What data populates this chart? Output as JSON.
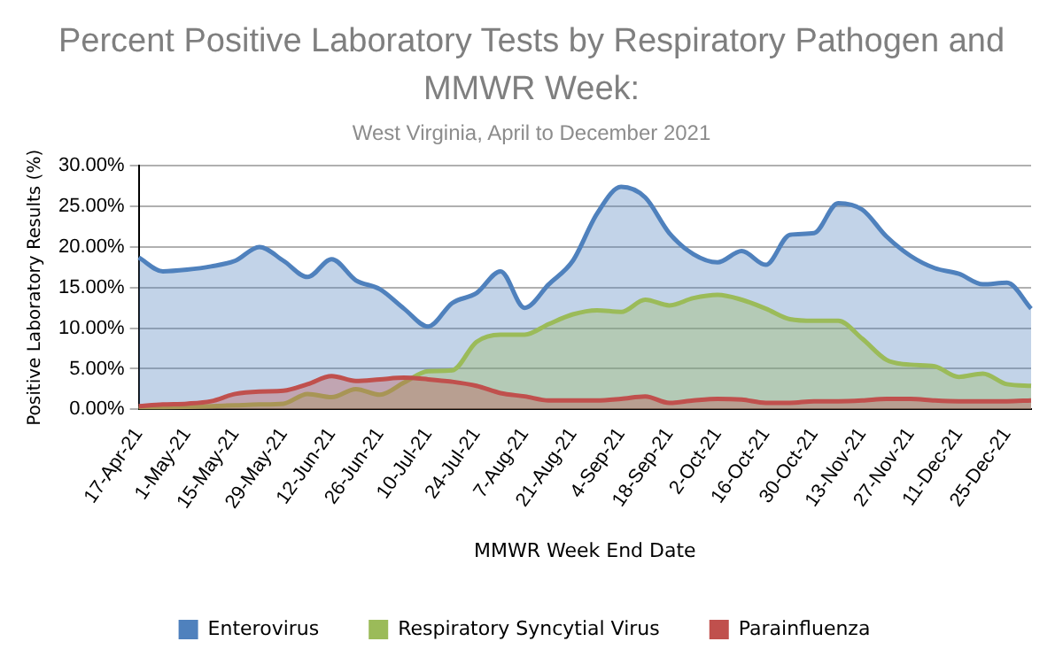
{
  "chart_data": {
    "type": "area",
    "title": "Percent Positive Laboratory Tests by Respiratory Pathogen and MMWR Week:",
    "subtitle": "West Virginia, April to December 2021",
    "xlabel": "MMWR Week End Date",
    "ylabel": "Positive Laboratory Results (%)",
    "categories": [
      "17-Apr-21",
      null,
      "1-May-21",
      null,
      "15-May-21",
      null,
      "29-May-21",
      null,
      "12-Jun-21",
      null,
      "26-Jun-21",
      null,
      "10-Jul-21",
      null,
      "24-Jul-21",
      null,
      "7-Aug-21",
      null,
      "21-Aug-21",
      null,
      "4-Sep-21",
      null,
      "18-Sep-21",
      null,
      "2-Oct-21",
      null,
      "16-Oct-21",
      null,
      "30-Oct-21",
      null,
      "13-Nov-21",
      null,
      "27-Nov-21",
      null,
      "11-Dec-21",
      null,
      "25-Dec-21",
      null
    ],
    "series": [
      {
        "name": "Enterovirus",
        "color": "#4f81bd",
        "values": [
          18.7,
          17.0,
          17.2,
          17.6,
          18.3,
          20.0,
          18.3,
          16.3,
          18.5,
          15.9,
          14.8,
          12.4,
          10.2,
          13.1,
          14.3,
          17.0,
          12.5,
          15.4,
          18.3,
          24.1,
          27.4,
          26.1,
          21.7,
          19.1,
          18.1,
          19.5,
          17.8,
          21.5,
          21.7,
          25.4,
          24.6,
          21.3,
          18.9,
          17.4,
          16.7,
          15.4,
          15.6,
          12.4
        ]
      },
      {
        "name": "Respiratory Syncytial Virus",
        "color": "#9bbb59",
        "values": [
          0.1,
          0.2,
          0.3,
          0.4,
          0.5,
          0.6,
          0.7,
          1.9,
          1.5,
          2.5,
          1.8,
          3.3,
          4.7,
          4.8,
          8.3,
          9.2,
          9.2,
          10.5,
          11.7,
          12.2,
          12.0,
          13.5,
          12.8,
          13.7,
          14.1,
          13.5,
          12.4,
          11.1,
          10.9,
          10.9,
          8.7,
          6.1,
          5.5,
          5.3,
          4.0,
          4.4,
          3.1,
          2.9
        ]
      },
      {
        "name": "Parainfluenza",
        "color": "#c0504d",
        "values": [
          0.4,
          0.6,
          0.7,
          1.0,
          1.9,
          2.2,
          2.3,
          3.1,
          4.1,
          3.5,
          3.7,
          3.9,
          3.7,
          3.4,
          2.9,
          2.0,
          1.6,
          1.1,
          1.1,
          1.1,
          1.3,
          1.6,
          0.8,
          1.1,
          1.3,
          1.2,
          0.8,
          0.8,
          1.0,
          1.0,
          1.1,
          1.3,
          1.3,
          1.1,
          1.0,
          1.0,
          1.0,
          1.1
        ]
      }
    ],
    "ylim": [
      0,
      30
    ],
    "yticks": [
      {
        "value": 0,
        "label": "0.00%"
      },
      {
        "value": 5,
        "label": "5.00%"
      },
      {
        "value": 10,
        "label": "10.00%"
      },
      {
        "value": 15,
        "label": "15.00%"
      },
      {
        "value": 20,
        "label": "20.00%"
      },
      {
        "value": 25,
        "label": "25.00%"
      },
      {
        "value": 30,
        "label": "30.00%"
      }
    ],
    "grid": "y",
    "legend": "bottom",
    "marker": "none",
    "line_style": "solid"
  }
}
